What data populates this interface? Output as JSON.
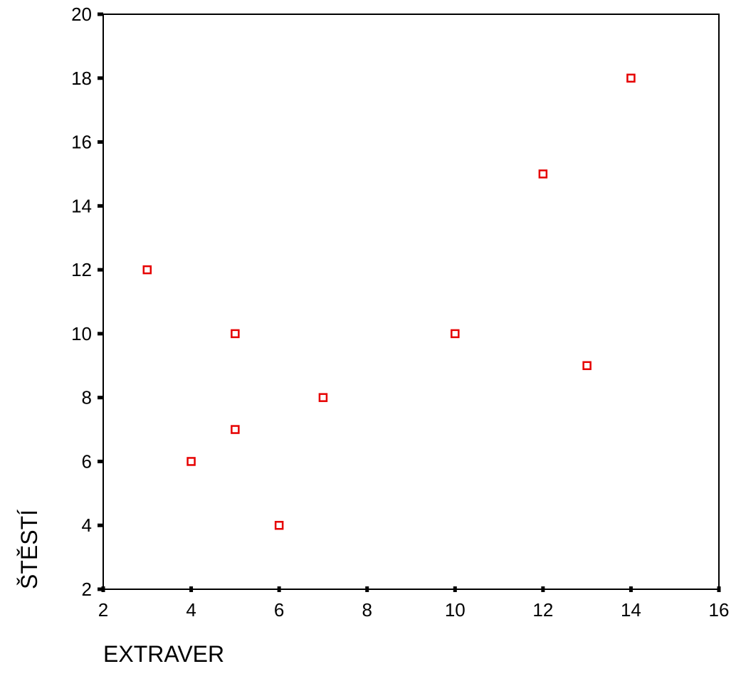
{
  "chart_data": {
    "type": "scatter",
    "title": "",
    "xlabel": "EXTRAVER",
    "ylabel": "ŠTĚSTÍ",
    "xlim": [
      2,
      16
    ],
    "ylim": [
      2,
      20
    ],
    "xticks": [
      2,
      4,
      6,
      8,
      10,
      12,
      14,
      16
    ],
    "yticks": [
      2,
      4,
      6,
      8,
      10,
      12,
      14,
      16,
      18,
      20
    ],
    "grid": false,
    "legend": "none",
    "marker": "open-square",
    "marker_color": "#e60000",
    "series": [
      {
        "points": [
          {
            "x": 3,
            "y": 12
          },
          {
            "x": 4,
            "y": 6
          },
          {
            "x": 5,
            "y": 10
          },
          {
            "x": 5,
            "y": 7
          },
          {
            "x": 6,
            "y": 4
          },
          {
            "x": 7,
            "y": 8
          },
          {
            "x": 10,
            "y": 10
          },
          {
            "x": 12,
            "y": 15
          },
          {
            "x": 13,
            "y": 9
          },
          {
            "x": 14,
            "y": 18
          }
        ]
      }
    ]
  }
}
